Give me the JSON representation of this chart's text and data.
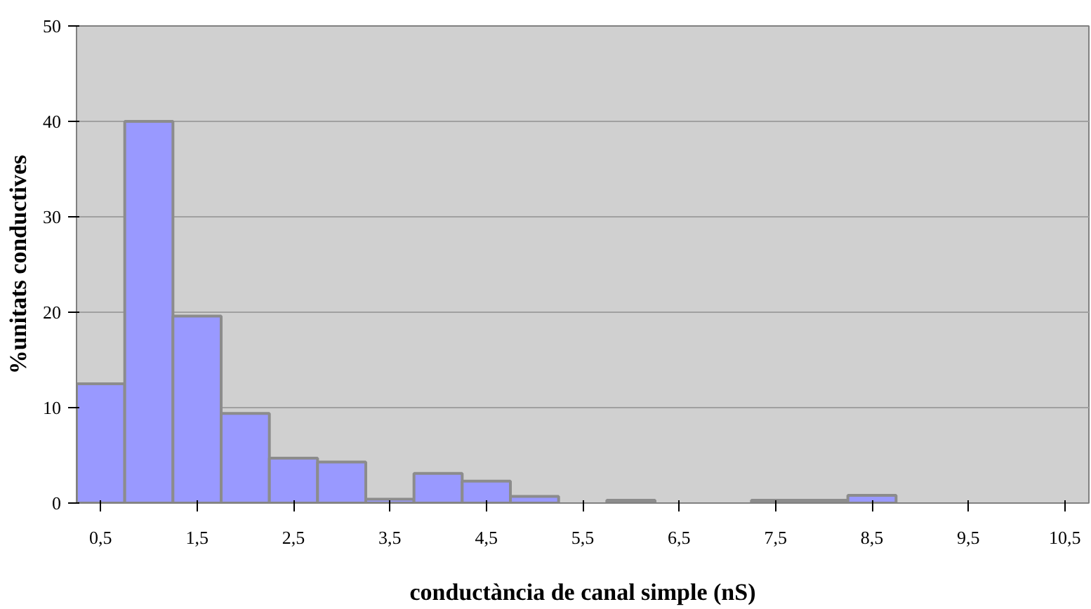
{
  "chart_data": {
    "type": "bar",
    "xlabel": "conductància de canal simple (nS)",
    "ylabel": "%unitats conductives",
    "categories": [
      "0,5",
      null,
      "1,5",
      null,
      "2,5",
      null,
      "3,5",
      null,
      "4,5",
      null,
      "5,5",
      null,
      "6,5",
      null,
      "7,5",
      null,
      "8,5",
      null,
      "9,5",
      null,
      "10,5"
    ],
    "values": [
      12.5,
      40,
      19.6,
      9.4,
      4.7,
      4.3,
      0.4,
      3.1,
      2.3,
      0.7,
      0,
      0.3,
      0,
      0,
      0.3,
      0.3,
      0.8,
      0,
      0,
      0,
      0
    ],
    "color": "#9999ff",
    "ylim": [
      0,
      50
    ],
    "yticks": [
      0,
      10,
      20,
      30,
      40,
      50
    ],
    "grid": "y"
  }
}
